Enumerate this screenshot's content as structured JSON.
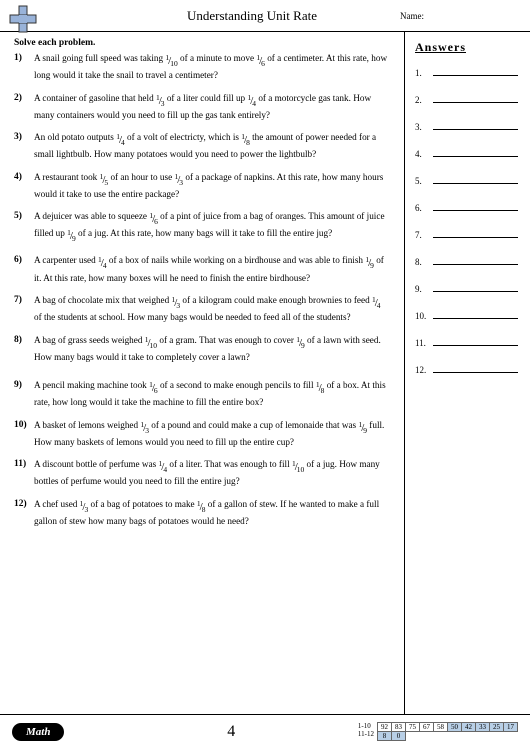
{
  "header": {
    "title": "Understanding Unit Rate",
    "name_label": "Name:"
  },
  "instruction": "Solve each problem.",
  "answers_title": "Answers",
  "problems": [
    {
      "n": "1)",
      "pre": "A snail going full speed was taking ",
      "f1": {
        "n": "1",
        "d": "10"
      },
      "mid": " of a minute to move ",
      "f2": {
        "n": "1",
        "d": "6"
      },
      "post": " of a centimeter. At this rate, how long would it take the snail to travel a centimeter?"
    },
    {
      "n": "2)",
      "pre": "A container of gasoline that held ",
      "f1": {
        "n": "1",
        "d": "3"
      },
      "mid": " of a liter could fill up ",
      "f2": {
        "n": "1",
        "d": "4"
      },
      "post": " of a motorcycle gas tank. How many containers would you need to fill up the gas tank entirely?"
    },
    {
      "n": "3)",
      "pre": "An old potato outputs ",
      "f1": {
        "n": "1",
        "d": "4"
      },
      "mid": " of a volt of electricty, which is ",
      "f2": {
        "n": "1",
        "d": "8"
      },
      "post": " the amount of power needed for a small lightbulb. How many potatoes would you need to power the lightbulb?"
    },
    {
      "n": "4)",
      "pre": "A restaurant took ",
      "f1": {
        "n": "1",
        "d": "5"
      },
      "mid": " of an hour to use ",
      "f2": {
        "n": "1",
        "d": "3"
      },
      "post": " of a package of napkins. At this rate, how many hours would it take to use the entire package?"
    },
    {
      "n": "5)",
      "pre": "A dejuicer was able to squeeze ",
      "f1": {
        "n": "1",
        "d": "6"
      },
      "mid": " of a pint of juice from a bag of oranges. This amount of juice filled up ",
      "f2": {
        "n": "1",
        "d": "9"
      },
      "post": " of a jug. At this rate, how many bags will it take to fill the entire jug?"
    },
    {
      "n": "6)",
      "pre": "A carpenter used ",
      "f1": {
        "n": "1",
        "d": "4"
      },
      "mid": " of a box of nails while working on a birdhouse and was able to finish ",
      "f2": {
        "n": "1",
        "d": "9"
      },
      "post": " of it. At this rate, how many boxes will he need to finish the entire birdhouse?"
    },
    {
      "n": "7)",
      "pre": "A bag of chocolate mix that weighed ",
      "f1": {
        "n": "1",
        "d": "3"
      },
      "mid": " of a kilogram could make enough brownies to feed ",
      "f2": {
        "n": "1",
        "d": "4"
      },
      "post": " of the students at school. How many bags would be needed to feed all of the students?"
    },
    {
      "n": "8)",
      "pre": "A bag of grass seeds weighed ",
      "f1": {
        "n": "1",
        "d": "10"
      },
      "mid": " of a gram. That was enough to cover ",
      "f2": {
        "n": "1",
        "d": "9"
      },
      "post": " of a lawn with seed. How many bags would it take to completely cover a lawn?"
    },
    {
      "n": "9)",
      "pre": "A pencil making machine took ",
      "f1": {
        "n": "1",
        "d": "6"
      },
      "mid": " of a second to make enough pencils to fill ",
      "f2": {
        "n": "1",
        "d": "8"
      },
      "post": " of a box. At this rate, how long would it take the machine to fill the entire box?"
    },
    {
      "n": "10)",
      "pre": "A basket of lemons weighed ",
      "f1": {
        "n": "1",
        "d": "3"
      },
      "mid": " of a pound and could make a cup of lemonaide that was ",
      "f2": {
        "n": "1",
        "d": "9"
      },
      "post": " full. How many baskets of lemons would you need to fill up the entire cup?"
    },
    {
      "n": "11)",
      "pre": "A discount bottle of perfume was ",
      "f1": {
        "n": "1",
        "d": "4"
      },
      "mid": " of a liter. That was enough to fill ",
      "f2": {
        "n": "1",
        "d": "10"
      },
      "post": " of a jug. How many bottles of perfume would you need to fill the entire jug?"
    },
    {
      "n": "12)",
      "pre": "A chef used ",
      "f1": {
        "n": "1",
        "d": "3"
      },
      "mid": " of a bag of potatoes to make ",
      "f2": {
        "n": "1",
        "d": "8"
      },
      "post": " of a gallon of stew. If he wanted to make a full gallon of stew how many bags of potatoes would he need?"
    }
  ],
  "answer_rows": [
    "1.",
    "2.",
    "3.",
    "4.",
    "5.",
    "6.",
    "7.",
    "8.",
    "9.",
    "10.",
    "11.",
    "12."
  ],
  "footer": {
    "badge": "Math",
    "page": "4",
    "score_labels": [
      "1-10",
      "11-12"
    ],
    "row1": [
      "92",
      "83",
      "75",
      "67",
      "58",
      "50",
      "42",
      "33",
      "25",
      "17"
    ],
    "row2": [
      "8",
      "0"
    ],
    "row1_hl_from": 5,
    "row2_hl_from": 0
  }
}
